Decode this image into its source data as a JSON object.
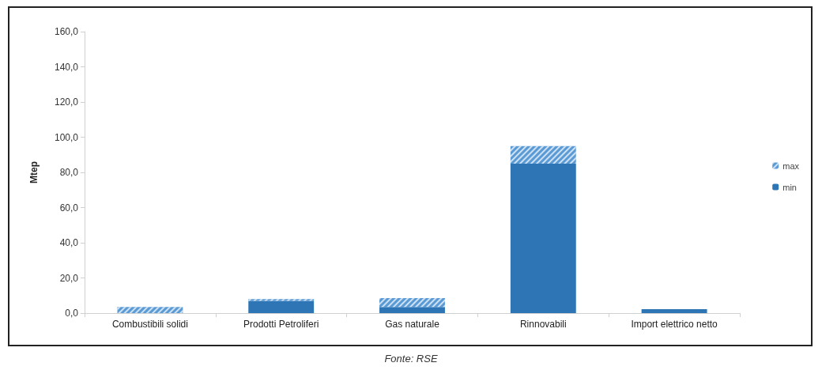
{
  "chart_data": {
    "type": "bar",
    "stacked": true,
    "ylabel": "Mtep",
    "categories": [
      "Combustibili solidi",
      "Prodotti Petroliferi",
      "Gas naturale",
      "Rinnovabili",
      "Import elettrico netto"
    ],
    "series": [
      {
        "name": "min",
        "color": "#2e75b6",
        "values": [
          0,
          7,
          3.5,
          85,
          2.3
        ]
      },
      {
        "name": "max",
        "color": "#5b9bd5",
        "values": [
          3.5,
          1,
          5,
          10,
          0
        ]
      }
    ],
    "ylim": [
      0,
      160
    ],
    "yticks": [
      {
        "value": 0,
        "label": "0,0"
      },
      {
        "value": 20,
        "label": "20,0"
      },
      {
        "value": 40,
        "label": "40,0"
      },
      {
        "value": 60,
        "label": "60,0"
      },
      {
        "value": 80,
        "label": "80,0"
      },
      {
        "value": 100,
        "label": "100,0"
      },
      {
        "value": 120,
        "label": "120,0"
      },
      {
        "value": 140,
        "label": "140,0"
      },
      {
        "value": 160,
        "label": "160,0"
      }
    ],
    "grid": false,
    "legend": "right",
    "annotations": [
      "Fonte: RSE"
    ]
  }
}
